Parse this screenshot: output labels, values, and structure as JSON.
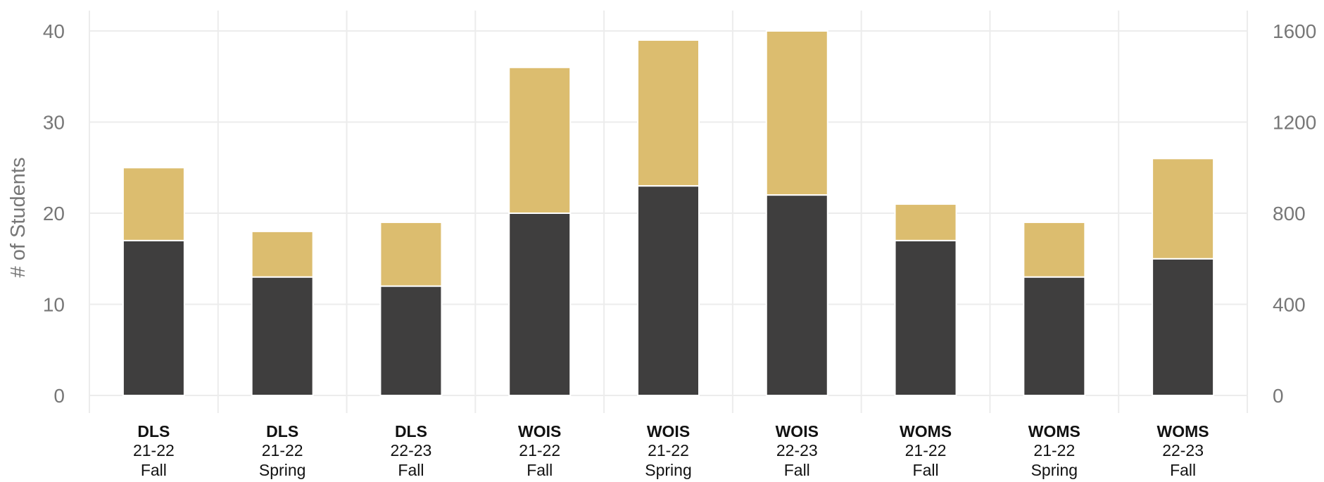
{
  "chart_data": {
    "type": "bar",
    "stacked": true,
    "ylabel": "# of Students",
    "ylim": [
      0,
      42
    ],
    "y_ticks": [
      0,
      10,
      20,
      30,
      40
    ],
    "y2lim": [
      0,
      1680
    ],
    "y2_ticks": [
      0,
      400,
      800,
      1200,
      1600
    ],
    "grid": true,
    "categories": [
      {
        "school": "DLS",
        "year": "21-22",
        "term": "Fall"
      },
      {
        "school": "DLS",
        "year": "21-22",
        "term": "Spring"
      },
      {
        "school": "DLS",
        "year": "22-23",
        "term": "Fall"
      },
      {
        "school": "WOIS",
        "year": "21-22",
        "term": "Fall"
      },
      {
        "school": "WOIS",
        "year": "21-22",
        "term": "Spring"
      },
      {
        "school": "WOIS",
        "year": "22-23",
        "term": "Fall"
      },
      {
        "school": "WOMS",
        "year": "21-22",
        "term": "Fall"
      },
      {
        "school": "WOMS",
        "year": "21-22",
        "term": "Spring"
      },
      {
        "school": "WOMS",
        "year": "22-23",
        "term": "Fall"
      }
    ],
    "series": [
      {
        "color": "#3f3e3e",
        "values": [
          17,
          13,
          12,
          20,
          23,
          22,
          17,
          13,
          15
        ]
      },
      {
        "color": "#dcbd6f",
        "values": [
          8,
          5,
          7,
          16,
          16,
          18,
          4,
          6,
          11
        ]
      }
    ]
  }
}
